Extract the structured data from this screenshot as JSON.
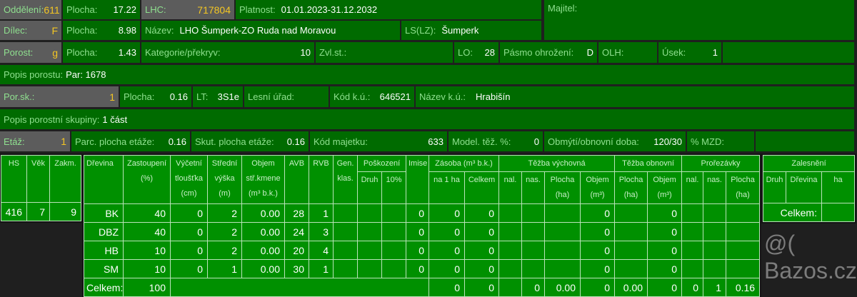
{
  "row1": {
    "oddeleni_label": "Oddělení:",
    "oddeleni": "611",
    "plocha_label": "Plocha:",
    "plocha": "17.22",
    "lhc_label": "LHC:",
    "lhc": "717804",
    "platnost_label": "Platnost:",
    "platnost": "01.01.2023-31.12.2032",
    "majitel_label": "Majitel:"
  },
  "row2": {
    "dilec_label": "Dílec:",
    "dilec": "F",
    "plocha_label": "Plocha:",
    "plocha": "8.98",
    "nazev_label": "Název:",
    "nazev": "LHO Šumperk-ZO Ruda nad Moravou",
    "ls_label": "LS(LZ):",
    "ls": "Šumperk"
  },
  "row3": {
    "porost_label": "Porost:",
    "porost": "g",
    "plocha_label": "Plocha:",
    "plocha": "1.43",
    "kategorie_label": "Kategorie/překryv:",
    "kategorie": "10",
    "zvlst_label": "Zvl.st.:",
    "lo_label": "LO:",
    "lo": "28",
    "pasmo_label": "Pásmo ohrožení:",
    "pasmo": "D",
    "olh_label": "OLH:",
    "usek_label": "Úsek:",
    "usek": "1"
  },
  "row4": {
    "popis_label": "Popis porostu:",
    "popis": "Par: 1678"
  },
  "row5": {
    "porsk_label": "Por.sk.:",
    "porsk": "1",
    "plocha_label": "Plocha:",
    "plocha": "0.16",
    "lt_label": "LT:",
    "lt": "3S1e",
    "urad_label": "Lesní úřad:",
    "kodku_label": "Kód k.ú.:",
    "kodku": "646521",
    "nazevku_label": "Název k.ú.:",
    "nazevku": "Hrabišín"
  },
  "row6": {
    "popis_label": "Popis porostní skupiny:",
    "popis": "1 část"
  },
  "row7": {
    "etaz_label": "Etáž:",
    "etaz": "1",
    "parc_label": "Parc. plocha etáže:",
    "parc": "0.16",
    "skut_label": "Skut. plocha etáže:",
    "skut": "0.16",
    "kodmaj_label": "Kód majetku:",
    "kodmaj": "633",
    "model_label": "Model. těž. %:",
    "model": "0",
    "obmyti_label": "Obmýtí/obnovní doba:",
    "obmyti": "120/30",
    "mzd_label": "% MZD:"
  },
  "left_table": {
    "headers": [
      "HS",
      "Věk",
      "Zakm."
    ],
    "values": [
      "416",
      "7",
      "9"
    ]
  },
  "main_table": {
    "h": {
      "drevina": "Dřevina",
      "zastoupeni": "Zastoupení (%)",
      "tloustka": "Výčetní tloušťka (cm)",
      "vyska": "Střední výška (m)",
      "objem": "Objem stř.kmene (m³ b.k.)",
      "avb": "AVB",
      "rvb": "RVB",
      "gen": "Gen. klas.",
      "poskozeni": "Poškození",
      "druh": "Druh",
      "p10": "10%",
      "imise": "Imise",
      "zasoba": "Zásoba (m³ b.k.)",
      "na1ha": "na 1 ha",
      "celkem": "Celkem",
      "tv": "Těžba výchovná",
      "to": "Těžba obnovní",
      "pr": "Prořezávky",
      "nal": "nal.",
      "nas": "nas.",
      "plocha": "Plocha (ha)",
      "objem_m3": "Objem (m³)"
    },
    "rows": [
      [
        "BK",
        "40",
        "0",
        "2",
        "0.00",
        "28",
        "1",
        "",
        "",
        "",
        "0",
        "0",
        "0",
        "",
        "",
        "",
        "0",
        "",
        "0",
        "",
        "",
        ""
      ],
      [
        "DBZ",
        "40",
        "0",
        "2",
        "0.00",
        "24",
        "3",
        "",
        "",
        "",
        "0",
        "0",
        "0",
        "",
        "",
        "",
        "0",
        "",
        "0",
        "",
        "",
        ""
      ],
      [
        "HB",
        "10",
        "0",
        "2",
        "0.00",
        "20",
        "4",
        "",
        "",
        "",
        "0",
        "0",
        "0",
        "",
        "",
        "",
        "0",
        "",
        "0",
        "",
        "",
        ""
      ],
      [
        "SM",
        "10",
        "0",
        "1",
        "0.00",
        "30",
        "1",
        "",
        "",
        "",
        "0",
        "0",
        "0",
        "",
        "",
        "",
        "0",
        "",
        "0",
        "",
        "",
        ""
      ]
    ],
    "total": {
      "label": "Celkem:",
      "zastoupeni": "100",
      "cells": [
        "0",
        "0",
        "",
        "0",
        "0.00",
        "0",
        "0.00",
        "0",
        "0",
        "1",
        "0.16"
      ]
    }
  },
  "right_table": {
    "title": "Zalesnění",
    "headers": [
      "Druh",
      "Dřevina",
      "ha"
    ],
    "total_label": "Celkem:"
  },
  "watermark": "@( Bazos.cz"
}
